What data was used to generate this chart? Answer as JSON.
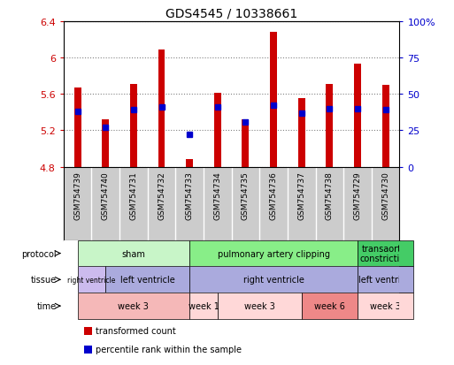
{
  "title": "GDS4545 / 10338661",
  "samples": [
    "GSM754739",
    "GSM754740",
    "GSM754731",
    "GSM754732",
    "GSM754733",
    "GSM754734",
    "GSM754735",
    "GSM754736",
    "GSM754737",
    "GSM754738",
    "GSM754729",
    "GSM754730"
  ],
  "bar_values": [
    5.67,
    5.32,
    5.71,
    6.09,
    4.88,
    5.61,
    5.32,
    6.28,
    5.55,
    5.71,
    5.93,
    5.7
  ],
  "bar_base": 4.8,
  "percentile_values": [
    0.38,
    0.27,
    0.39,
    0.41,
    0.22,
    0.41,
    0.31,
    0.42,
    0.37,
    0.4,
    0.4,
    0.39
  ],
  "ylim": [
    4.8,
    6.4
  ],
  "yticks": [
    4.8,
    5.2,
    5.6,
    6.0,
    6.4
  ],
  "ytick_labels": [
    "4.8",
    "5.2",
    "5.6",
    "6",
    "6.4"
  ],
  "y2lim": [
    0,
    100
  ],
  "y2ticks": [
    0,
    25,
    50,
    75,
    100
  ],
  "y2ticklabels": [
    "0",
    "25",
    "50",
    "75",
    "100%"
  ],
  "bar_color": "#cc0000",
  "percentile_color": "#0000cc",
  "bar_width": 0.25,
  "protocol_data": [
    {
      "label": "sham",
      "start": 0,
      "end": 4,
      "color": "#c8f5c8"
    },
    {
      "label": "pulmonary artery clipping",
      "start": 4,
      "end": 10,
      "color": "#88ee88"
    },
    {
      "label": "transaortic\nconstriction",
      "start": 10,
      "end": 12,
      "color": "#44cc66"
    }
  ],
  "tissue_data": [
    {
      "label": "right ventricle",
      "start": 0,
      "end": 1,
      "color": "#ccbbee",
      "fontsize": 5.5
    },
    {
      "label": "left ventricle",
      "start": 1,
      "end": 4,
      "color": "#aaaadd"
    },
    {
      "label": "right ventricle",
      "start": 4,
      "end": 10,
      "color": "#aaaadd"
    },
    {
      "label": "left ventricle",
      "start": 10,
      "end": 12,
      "color": "#aaaadd"
    }
  ],
  "time_data": [
    {
      "label": "week 3",
      "start": 0,
      "end": 4,
      "color": "#f5b8b8"
    },
    {
      "label": "week 1",
      "start": 4,
      "end": 5,
      "color": "#ffd8d8"
    },
    {
      "label": "week 3",
      "start": 5,
      "end": 8,
      "color": "#ffd8d8"
    },
    {
      "label": "week 6",
      "start": 8,
      "end": 10,
      "color": "#ee8888"
    },
    {
      "label": "week 3",
      "start": 10,
      "end": 12,
      "color": "#ffd8d8"
    }
  ],
  "legend_items": [
    {
      "label": "transformed count",
      "color": "#cc0000"
    },
    {
      "label": "percentile rank within the sample",
      "color": "#0000cc"
    }
  ],
  "xticklabel_bg": "#cccccc",
  "chart_bg": "#ffffff",
  "n_samples": 12
}
